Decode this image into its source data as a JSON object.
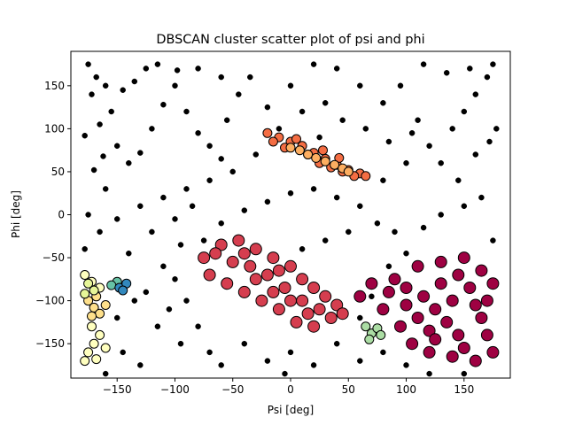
{
  "chart_data": {
    "type": "scatter",
    "title": "DBSCAN cluster scatter plot of psi and phi",
    "xlabel": "Psi [deg]",
    "ylabel": "Phi [deg]",
    "xlim": [
      -190,
      190
    ],
    "ylim": [
      -190,
      190
    ],
    "xticks": [
      -150,
      -100,
      -50,
      0,
      50,
      100,
      150
    ],
    "xtick_labels": [
      "−150",
      "−100",
      "−50",
      "0",
      "50",
      "100",
      "150"
    ],
    "yticks": [
      -150,
      -100,
      -50,
      0,
      50,
      100,
      150
    ],
    "ytick_labels": [
      "−150",
      "−100",
      "−50",
      "0",
      "50",
      "100",
      "150"
    ],
    "grid": false,
    "legend": "none",
    "series": [
      {
        "color": "#000000",
        "marker_size": "small",
        "points": [
          [
            -175,
            175
          ],
          [
            -168,
            160
          ],
          [
            -160,
            150
          ],
          [
            -172,
            140
          ],
          [
            -155,
            120
          ],
          [
            -165,
            105
          ],
          [
            -178,
            92
          ],
          [
            -150,
            80
          ],
          [
            -162,
            68
          ],
          [
            -140,
            60
          ],
          [
            -170,
            52
          ],
          [
            -130,
            72
          ],
          [
            -120,
            100
          ],
          [
            -110,
            128
          ],
          [
            -100,
            150
          ],
          [
            -125,
            170
          ],
          [
            -90,
            120
          ],
          [
            -80,
            95
          ],
          [
            -70,
            80
          ],
          [
            -60,
            65
          ],
          [
            -55,
            110
          ],
          [
            -45,
            140
          ],
          [
            -35,
            160
          ],
          [
            -20,
            125
          ],
          [
            -10,
            100
          ],
          [
            -30,
            70
          ],
          [
            -50,
            50
          ],
          [
            -70,
            40
          ],
          [
            -90,
            30
          ],
          [
            -110,
            20
          ],
          [
            -130,
            10
          ],
          [
            -150,
            -5
          ],
          [
            -120,
            -20
          ],
          [
            -95,
            -35
          ],
          [
            -140,
            -45
          ],
          [
            -110,
            -60
          ],
          [
            -100,
            -75
          ],
          [
            -125,
            -90
          ],
          [
            -105,
            -110
          ],
          [
            -115,
            -130
          ],
          [
            -95,
            -150
          ],
          [
            -130,
            -175
          ],
          [
            -145,
            -160
          ],
          [
            -150,
            -120
          ],
          [
            -135,
            -100
          ],
          [
            -90,
            -100
          ],
          [
            -80,
            -130
          ],
          [
            -70,
            -160
          ],
          [
            -60,
            -175
          ],
          [
            -40,
            -150
          ],
          [
            -20,
            -170
          ],
          [
            0,
            -160
          ],
          [
            20,
            -175
          ],
          [
            40,
            -150
          ],
          [
            60,
            -170
          ],
          [
            80,
            -160
          ],
          [
            100,
            -175
          ],
          [
            60,
            -120
          ],
          [
            70,
            -95
          ],
          [
            85,
            -60
          ],
          [
            100,
            -45
          ],
          [
            90,
            -20
          ],
          [
            75,
            -10
          ],
          [
            60,
            10
          ],
          [
            40,
            20
          ],
          [
            20,
            30
          ],
          [
            0,
            25
          ],
          [
            -20,
            15
          ],
          [
            -40,
            5
          ],
          [
            -60,
            -10
          ],
          [
            -75,
            -30
          ],
          [
            80,
            40
          ],
          [
            100,
            60
          ],
          [
            120,
            80
          ],
          [
            140,
            100
          ],
          [
            150,
            120
          ],
          [
            160,
            140
          ],
          [
            170,
            160
          ],
          [
            175,
            175
          ],
          [
            155,
            170
          ],
          [
            135,
            165
          ],
          [
            115,
            175
          ],
          [
            95,
            150
          ],
          [
            80,
            130
          ],
          [
            60,
            150
          ],
          [
            40,
            170
          ],
          [
            20,
            175
          ],
          [
            0,
            150
          ],
          [
            110,
            110
          ],
          [
            130,
            60
          ],
          [
            145,
            40
          ],
          [
            160,
            70
          ],
          [
            172,
            85
          ],
          [
            178,
            100
          ],
          [
            165,
            20
          ],
          [
            150,
            10
          ],
          [
            130,
            0
          ],
          [
            115,
            -15
          ],
          [
            175,
            -30
          ],
          [
            30,
            130
          ],
          [
            45,
            110
          ],
          [
            65,
            100
          ],
          [
            85,
            85
          ],
          [
            105,
            95
          ],
          [
            -165,
            -20
          ],
          [
            -178,
            -40
          ],
          [
            -160,
            -185
          ],
          [
            -175,
            0
          ],
          [
            -60,
            160
          ],
          [
            -80,
            170
          ],
          [
            10,
            120
          ],
          [
            25,
            90
          ],
          [
            150,
            -185
          ],
          [
            120,
            -185
          ],
          [
            -5,
            -185
          ],
          [
            -100,
            -5
          ],
          [
            -85,
            10
          ],
          [
            10,
            -40
          ],
          [
            30,
            -30
          ],
          [
            50,
            -20
          ],
          [
            -160,
            30
          ],
          [
            -145,
            145
          ],
          [
            -135,
            155
          ],
          [
            -115,
            175
          ],
          [
            -98,
            168
          ]
        ]
      },
      {
        "color": "#9e0142",
        "marker_size": "large",
        "points": [
          [
            90,
            -75
          ],
          [
            110,
            -60
          ],
          [
            130,
            -55
          ],
          [
            150,
            -50
          ],
          [
            165,
            -65
          ],
          [
            175,
            -80
          ],
          [
            170,
            -100
          ],
          [
            165,
            -120
          ],
          [
            170,
            -140
          ],
          [
            175,
            -160
          ],
          [
            160,
            -170
          ],
          [
            140,
            -165
          ],
          [
            120,
            -160
          ],
          [
            105,
            -150
          ],
          [
            95,
            -130
          ],
          [
            80,
            -110
          ],
          [
            85,
            -90
          ],
          [
            100,
            -85
          ],
          [
            115,
            -95
          ],
          [
            125,
            -110
          ],
          [
            135,
            -125
          ],
          [
            145,
            -140
          ],
          [
            150,
            -155
          ],
          [
            140,
            -100
          ],
          [
            155,
            -85
          ],
          [
            160,
            -105
          ],
          [
            130,
            -80
          ],
          [
            110,
            -120
          ],
          [
            120,
            -135
          ],
          [
            100,
            -105
          ],
          [
            70,
            -80
          ],
          [
            60,
            -95
          ],
          [
            145,
            -70
          ],
          [
            125,
            -145
          ]
        ]
      },
      {
        "color": "#d53e4f",
        "marker_size": "large",
        "points": [
          [
            -75,
            -50
          ],
          [
            -60,
            -35
          ],
          [
            -45,
            -30
          ],
          [
            -30,
            -40
          ],
          [
            -15,
            -50
          ],
          [
            0,
            -60
          ],
          [
            10,
            -75
          ],
          [
            20,
            -85
          ],
          [
            30,
            -95
          ],
          [
            40,
            -105
          ],
          [
            35,
            -120
          ],
          [
            20,
            -130
          ],
          [
            5,
            -125
          ],
          [
            -10,
            -110
          ],
          [
            -25,
            -100
          ],
          [
            -40,
            -90
          ],
          [
            -55,
            -80
          ],
          [
            -70,
            -70
          ],
          [
            -50,
            -55
          ],
          [
            -35,
            -60
          ],
          [
            -20,
            -70
          ],
          [
            -5,
            -85
          ],
          [
            10,
            -100
          ],
          [
            25,
            -110
          ],
          [
            -65,
            -45
          ],
          [
            -40,
            -45
          ],
          [
            -15,
            -90
          ],
          [
            0,
            -100
          ],
          [
            15,
            -115
          ],
          [
            -30,
            -75
          ],
          [
            45,
            -115
          ],
          [
            -10,
            -65
          ]
        ]
      },
      {
        "color": "#f46d43",
        "marker_size": "medium",
        "points": [
          [
            -20,
            95
          ],
          [
            -10,
            90
          ],
          [
            0,
            85
          ],
          [
            10,
            80
          ],
          [
            20,
            72
          ],
          [
            30,
            65
          ],
          [
            40,
            58
          ],
          [
            50,
            52
          ],
          [
            60,
            48
          ],
          [
            65,
            45
          ],
          [
            -5,
            78
          ],
          [
            15,
            70
          ],
          [
            25,
            60
          ],
          [
            35,
            55
          ],
          [
            45,
            50
          ],
          [
            55,
            45
          ],
          [
            5,
            88
          ],
          [
            -15,
            85
          ],
          [
            28,
            75
          ],
          [
            42,
            66
          ]
        ]
      },
      {
        "color": "#fdae61",
        "marker_size": "medium",
        "points": [
          [
            0,
            78
          ],
          [
            8,
            75
          ],
          [
            15,
            70
          ],
          [
            22,
            66
          ],
          [
            30,
            62
          ],
          [
            38,
            58
          ],
          [
            45,
            54
          ],
          [
            50,
            50
          ]
        ]
      },
      {
        "color": "#fee08b",
        "marker_size": "medium",
        "points": [
          [
            -175,
            -100
          ],
          [
            -170,
            -108
          ],
          [
            -165,
            -115
          ],
          [
            -172,
            -118
          ],
          [
            -160,
            -105
          ],
          [
            -168,
            -95
          ]
        ]
      },
      {
        "color": "#ffffbf",
        "marker_size": "medium",
        "points": [
          [
            -178,
            -70
          ],
          [
            -172,
            -78
          ],
          [
            -165,
            -85
          ],
          [
            -175,
            -160
          ],
          [
            -170,
            -150
          ],
          [
            -165,
            -140
          ],
          [
            -172,
            -130
          ],
          [
            -160,
            -155
          ],
          [
            -178,
            -170
          ],
          [
            -168,
            -168
          ]
        ]
      },
      {
        "color": "#e6f598",
        "marker_size": "medium",
        "points": [
          [
            -175,
            -80
          ],
          [
            -170,
            -88
          ],
          [
            -178,
            -92
          ]
        ]
      },
      {
        "color": "#abdda4",
        "marker_size": "medium",
        "points": [
          [
            65,
            -130
          ],
          [
            70,
            -138
          ],
          [
            75,
            -132
          ],
          [
            68,
            -145
          ],
          [
            78,
            -140
          ]
        ]
      },
      {
        "color": "#66c2a5",
        "marker_size": "medium",
        "points": [
          [
            -150,
            -78
          ],
          [
            -155,
            -82
          ]
        ]
      },
      {
        "color": "#3288bd",
        "marker_size": "medium",
        "points": [
          [
            -148,
            -85
          ],
          [
            -142,
            -80
          ],
          [
            -145,
            -88
          ]
        ]
      }
    ]
  }
}
